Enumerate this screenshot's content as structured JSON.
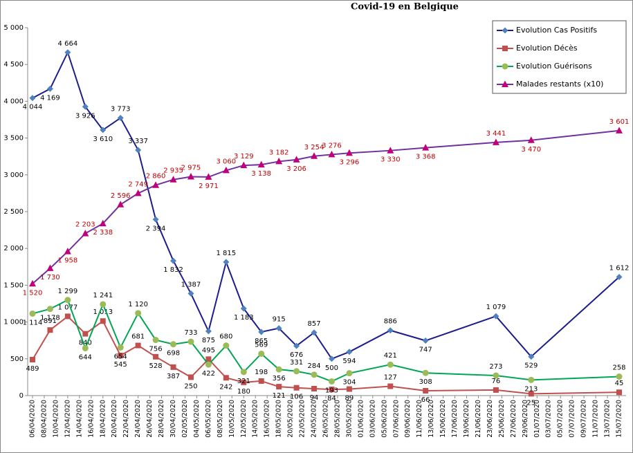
{
  "chart_data": {
    "type": "line",
    "title": "Covid-19 en Belgique",
    "x": [
      "06/04/2020",
      "09/04/2020",
      "12/04/2020",
      "15/04/2020",
      "18/04/2020",
      "21/04/2020",
      "24/04/2020",
      "27/04/2020",
      "30/04/2020",
      "03/05/2020",
      "06/05/2020",
      "09/05/2020",
      "12/05/2020",
      "15/05/2020",
      "18/05/2020",
      "21/05/2020",
      "24/05/2020",
      "27/05/2020",
      "30/05/2020",
      "06/06/2020",
      "12/06/2020",
      "24/06/2020",
      "30/06/2020",
      "15/07/2020"
    ],
    "xticks": [
      "06/04/2020",
      "08/04/2020",
      "10/04/2020",
      "12/04/2020",
      "14/04/2020",
      "16/04/2020",
      "18/04/2020",
      "20/04/2020",
      "22/04/2020",
      "24/04/2020",
      "26/04/2020",
      "28/04/2020",
      "30/04/2020",
      "02/05/2020",
      "04/05/2020",
      "06/05/2020",
      "08/05/2020",
      "10/05/2020",
      "12/05/2020",
      "14/05/2020",
      "16/05/2020",
      "18/05/2020",
      "20/05/2020",
      "22/05/2020",
      "24/05/2020",
      "26/05/2020",
      "28/05/2020",
      "30/05/2020",
      "01/06/2020",
      "03/06/2020",
      "05/06/2020",
      "07/06/2020",
      "09/06/2020",
      "11/06/2020",
      "13/06/2020",
      "15/06/2020",
      "17/06/2020",
      "19/06/2020",
      "21/06/2020",
      "23/06/2020",
      "25/06/2020",
      "27/06/2020",
      "29/06/2020",
      "01/07/2020",
      "03/07/2020",
      "05/07/2020",
      "07/07/2020",
      "09/07/2020",
      "11/07/2020",
      "13/07/2020",
      "15/07/2020"
    ],
    "ylim": [
      0,
      5000
    ],
    "yticks": [
      0,
      500,
      {
        "value": 1000,
        "label": "1 000"
      },
      {
        "value": 1500,
        "label": "1 500"
      },
      {
        "value": 2000,
        "label": "2 000"
      },
      {
        "value": 2500,
        "label": "2 500"
      },
      {
        "value": 3000,
        "label": "3 000"
      },
      {
        "value": 3500,
        "label": "3 500"
      },
      {
        "value": 4000,
        "label": "4 000"
      },
      {
        "value": 4500,
        "label": "4 500"
      },
      {
        "value": 5000,
        "label": "5 000"
      }
    ],
    "grid": false,
    "legend": "top-right",
    "series": [
      {
        "name": "Evolution Cas Positifs",
        "color": "#1c1c8c",
        "marker": "diamond",
        "marker_color": "#4f81bd",
        "label_color": "#000000",
        "values": [
          4044,
          4169,
          4664,
          3926,
          3610,
          3773,
          3337,
          2394,
          1832,
          1387,
          875,
          1815,
          1183,
          865,
          915,
          676,
          857,
          500,
          594,
          886,
          747,
          1079,
          529,
          1612
        ],
        "value_labels": [
          "4 044",
          "4 169",
          "4 664",
          "3 926",
          "3 610",
          "3 773",
          "3 337",
          "2 394",
          "1 832",
          "1 387",
          "875",
          "1 815",
          "1 183",
          "865",
          "915",
          "676",
          "857",
          "500",
          "594",
          "886",
          "747",
          "1 079",
          "529",
          "1 612"
        ]
      },
      {
        "name": "Evolution Décès",
        "color": "#c0504d",
        "marker": "square",
        "marker_color": "#c0504d",
        "label_color": "#000000",
        "values": [
          489,
          891,
          1077,
          840,
          1013,
          545,
          681,
          528,
          387,
          250,
          495,
          242,
          180,
          198,
          121,
          106,
          94,
          84,
          89,
          127,
          66,
          76,
          25,
          45
        ],
        "value_labels": [
          "489",
          "891",
          "1 077",
          "840",
          "1 013",
          "545",
          "681",
          "528",
          "387",
          "250",
          "495",
          "242",
          "180",
          "198",
          "121",
          "106",
          "94",
          "84",
          "89",
          "127",
          "66",
          "76",
          "25",
          "45"
        ]
      },
      {
        "name": "Evolution Guérisons",
        "color": "#00a651",
        "marker": "circle",
        "marker_color": "#9bbb59",
        "label_color": "#000000",
        "values": [
          1114,
          1178,
          1299,
          644,
          1241,
          654,
          1120,
          756,
          698,
          733,
          422,
          680,
          321,
          569,
          356,
          331,
          284,
          193,
          304,
          421,
          308,
          273,
          213,
          258
        ],
        "value_labels": [
          "1 114",
          "1 178",
          "1 299",
          "644",
          "1 241",
          "654",
          "1 120",
          "756",
          "698",
          "733",
          "422",
          "680",
          "321",
          "569",
          "356",
          "331",
          "284",
          "193",
          "304",
          "421",
          "308",
          "273",
          "213",
          "258"
        ]
      },
      {
        "name": "Malades restants (x10)",
        "color": "#7030a0",
        "marker": "triangle",
        "marker_color": "#c0007a",
        "label_color": "#c00000",
        "values": [
          1520,
          1730,
          1958,
          2203,
          2338,
          2596,
          2749,
          2860,
          2935,
          2975,
          2971,
          3060,
          3129,
          3138,
          3182,
          3206,
          3254,
          3276,
          3296,
          3330,
          3368,
          3441,
          3470,
          3601
        ],
        "value_labels": [
          "1 520",
          "1 730",
          "1 958",
          "2 203",
          "2 338",
          "2 596",
          "2 749",
          "2 860",
          "2 935",
          "2 975",
          "2 971",
          "3 060",
          "3 129",
          "3 138",
          "3 182",
          "3 206",
          "3 254",
          "3 276",
          "3 296",
          "3 330",
          "3 368",
          "3 441",
          "3 470",
          "3 601"
        ]
      }
    ]
  }
}
